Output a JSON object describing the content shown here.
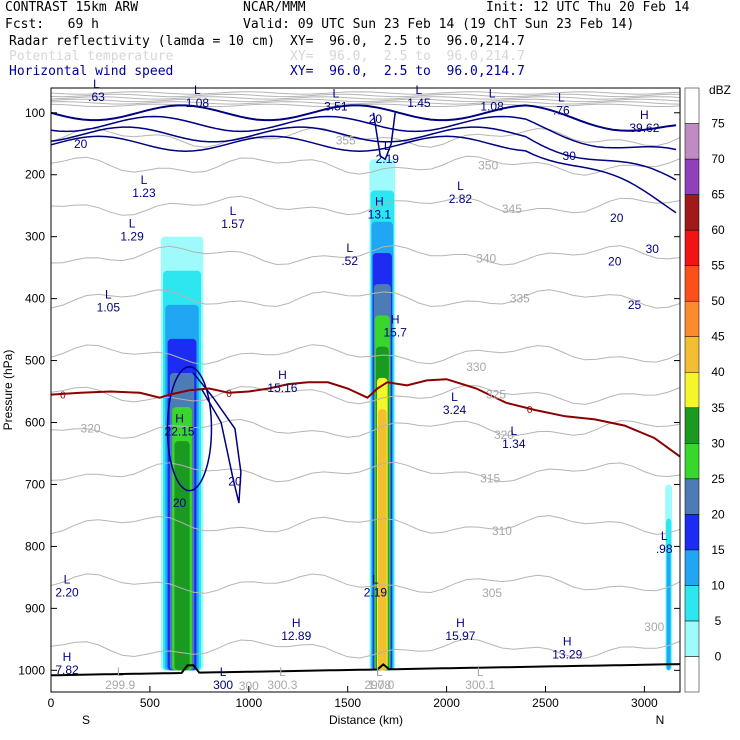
{
  "header": {
    "model": "CONTRAST 15km ARW",
    "center": "NCAR/MMM",
    "init": "Init: 12 UTC Thu 20 Feb 14",
    "fcst": "Fcst:   69 h",
    "valid": "Valid: 09 UTC Sun 23 Feb 14 (19 ChT Sun 23 Feb 14)",
    "fields": [
      {
        "name": "Radar reflectivity (lamda = 10 cm)",
        "xy": "XY=  96.0,  2.5 to  96.0,214.7",
        "color": "#000000"
      },
      {
        "name": "Potential temperature",
        "xy": "XY=  96.0,  2.5 to  96.0,214.7",
        "color": "#d6d6d6"
      },
      {
        "name": "Horizontal wind speed",
        "xy": "XY=  96.0,  2.5 to  96.0,214.7",
        "color": "#000099"
      }
    ]
  },
  "footer": {
    "south": "S",
    "north": "N"
  },
  "colors": {
    "frame": "#000000",
    "theta": "#b5b5b5",
    "wind": "#000080",
    "freezing": "#8b0000",
    "terrain": "#000000"
  },
  "chart_data": {
    "type": "heatmap",
    "title": "Radar reflectivity (lamda = 10 cm)",
    "xlabel": "Distance (km)",
    "ylabel": "Pressure (hPa)",
    "xlim": [
      0,
      3180
    ],
    "ylim": [
      1035,
      60
    ],
    "y_log_scale": false,
    "xticks": [
      0,
      500,
      1000,
      1500,
      2000,
      2500,
      3000
    ],
    "yticks": [
      100,
      200,
      300,
      400,
      500,
      600,
      700,
      800,
      900,
      1000
    ],
    "colorbar": {
      "unit": "dBZ",
      "levels": [
        0,
        5,
        10,
        15,
        20,
        25,
        30,
        35,
        40,
        45,
        50,
        55,
        60,
        65,
        70,
        75
      ],
      "colors": [
        "#ffffff",
        "#9ffbfb",
        "#2ce6f0",
        "#20a6f2",
        "#1c2cf2",
        "#4c7cb6",
        "#39d72b",
        "#1a9a20",
        "#f5f52b",
        "#f4be32",
        "#fc8a2e",
        "#fc501b",
        "#f01414",
        "#a01a1a",
        "#9040b8",
        "#c08ac2",
        "#ffffff"
      ]
    },
    "cells": [
      {
        "x": [
          555,
          770
        ],
        "top": 300,
        "core": 22,
        "max": 35
      },
      {
        "x": [
          1610,
          1740
        ],
        "top": 175,
        "core": 24,
        "max": 45
      },
      {
        "x": [
          3105,
          3140
        ],
        "top": 700,
        "core": 10,
        "max": 15
      }
    ],
    "theta_labels": [
      {
        "x": 1490,
        "p": 145,
        "v": "355"
      },
      {
        "x": 2210,
        "p": 185,
        "v": "350"
      },
      {
        "x": 2330,
        "p": 255,
        "v": "345"
      },
      {
        "x": 2200,
        "p": 335,
        "v": "340"
      },
      {
        "x": 2370,
        "p": 400,
        "v": "335"
      },
      {
        "x": 2150,
        "p": 510,
        "v": "330"
      },
      {
        "x": 2250,
        "p": 555,
        "v": "325"
      },
      {
        "x": 2290,
        "p": 620,
        "v": "320"
      },
      {
        "x": 2220,
        "p": 690,
        "v": "315"
      },
      {
        "x": 2280,
        "p": 775,
        "v": "310"
      },
      {
        "x": 2230,
        "p": 875,
        "v": "305"
      },
      {
        "x": 3050,
        "p": 930,
        "v": "300"
      },
      {
        "x": 200,
        "p": 610,
        "v": "320"
      },
      {
        "x": 1000,
        "p": 1025,
        "v": "300"
      }
    ],
    "wind_labels": [
      {
        "x": 150,
        "p": 150,
        "v": "20"
      },
      {
        "x": 1640,
        "p": 110,
        "v": "20"
      },
      {
        "x": 2620,
        "p": 170,
        "v": "30"
      },
      {
        "x": 2860,
        "p": 270,
        "v": "20"
      },
      {
        "x": 2850,
        "p": 340,
        "v": "20"
      },
      {
        "x": 3040,
        "p": 320,
        "v": "30"
      },
      {
        "x": 2950,
        "p": 410,
        "v": "25"
      },
      {
        "x": 650,
        "p": 730,
        "v": "20"
      },
      {
        "x": 930,
        "p": 695,
        "v": "20"
      }
    ],
    "extrema": [
      {
        "t": "L",
        "x": 230,
        "p": 60,
        "v": ".63"
      },
      {
        "t": "L",
        "x": 740,
        "p": 70,
        "v": "1.08"
      },
      {
        "t": "L",
        "x": 1440,
        "p": 75,
        "v": "3.51"
      },
      {
        "t": "L",
        "x": 1860,
        "p": 70,
        "v": "1.45"
      },
      {
        "t": "L",
        "x": 2230,
        "p": 75,
        "v": "1.08"
      },
      {
        "t": "L",
        "x": 2580,
        "p": 82,
        "v": ".76"
      },
      {
        "t": "H",
        "x": 3000,
        "p": 110,
        "v": "39.62"
      },
      {
        "t": "L",
        "x": 1700,
        "p": 160,
        "v": "2.19"
      },
      {
        "t": "L",
        "x": 470,
        "p": 215,
        "v": "1.23"
      },
      {
        "t": "L",
        "x": 2070,
        "p": 225,
        "v": "2.82"
      },
      {
        "t": "H",
        "x": 1660,
        "p": 250,
        "v": "13.1"
      },
      {
        "t": "L",
        "x": 920,
        "p": 265,
        "v": "1.57"
      },
      {
        "t": "L",
        "x": 410,
        "p": 285,
        "v": "1.29"
      },
      {
        "t": "L",
        "x": 1510,
        "p": 325,
        "v": ".52"
      },
      {
        "t": "L",
        "x": 290,
        "p": 400,
        "v": "1.05"
      },
      {
        "t": "H",
        "x": 1740,
        "p": 440,
        "v": "15.7"
      },
      {
        "t": "H",
        "x": 1170,
        "p": 530,
        "v": "15.16"
      },
      {
        "t": "L",
        "x": 2040,
        "p": 565,
        "v": "3.24"
      },
      {
        "t": "H",
        "x": 650,
        "p": 600,
        "v": "22.15"
      },
      {
        "t": "L",
        "x": 2340,
        "p": 620,
        "v": "1.34"
      },
      {
        "t": "L",
        "x": 3100,
        "p": 790,
        "v": ".98"
      },
      {
        "t": "L",
        "x": 50,
        "p": 860,
        "v": "2.20"
      },
      {
        "t": "L",
        "x": 1640,
        "p": 860,
        "v": "2.19"
      },
      {
        "t": "H",
        "x": 1240,
        "p": 930,
        "v": "12.89"
      },
      {
        "t": "H",
        "x": 2070,
        "p": 930,
        "v": "15.97"
      },
      {
        "t": "H",
        "x": 2610,
        "p": 960,
        "v": "13.29"
      },
      {
        "t": "H",
        "x": 0,
        "p": 985,
        "v": "7.82"
      },
      {
        "t": "L",
        "x": 350,
        "p": 1040,
        "v": "299.9"
      },
      {
        "t": "L",
        "x": 1170,
        "p": 1045,
        "v": "300.3"
      },
      {
        "t": "L",
        "x": 1660,
        "p": 1040,
        "v": "1.08"
      },
      {
        "t": "L",
        "x": 1660,
        "p": 1060,
        "v": "297.0"
      },
      {
        "t": "L",
        "x": 2170,
        "p": 1045,
        "v": "300.1"
      },
      {
        "t": "L",
        "x": 870,
        "p": 1030,
        "v": "300"
      }
    ],
    "freezing_level_label": "0",
    "freezing_level": [
      [
        0,
        555
      ],
      [
        150,
        552
      ],
      [
        300,
        550
      ],
      [
        450,
        552
      ],
      [
        550,
        560
      ],
      [
        600,
        555
      ],
      [
        700,
        548
      ],
      [
        800,
        545
      ],
      [
        900,
        552
      ],
      [
        1000,
        550
      ],
      [
        1100,
        545
      ],
      [
        1200,
        538
      ],
      [
        1300,
        535
      ],
      [
        1400,
        535
      ],
      [
        1500,
        545
      ],
      [
        1600,
        560
      ],
      [
        1650,
        545
      ],
      [
        1700,
        535
      ],
      [
        1800,
        540
      ],
      [
        1900,
        532
      ],
      [
        2000,
        530
      ],
      [
        2150,
        545
      ],
      [
        2300,
        568
      ],
      [
        2450,
        580
      ],
      [
        2600,
        590
      ],
      [
        2750,
        595
      ],
      [
        2900,
        605
      ],
      [
        3050,
        625
      ],
      [
        3180,
        655
      ]
    ]
  }
}
